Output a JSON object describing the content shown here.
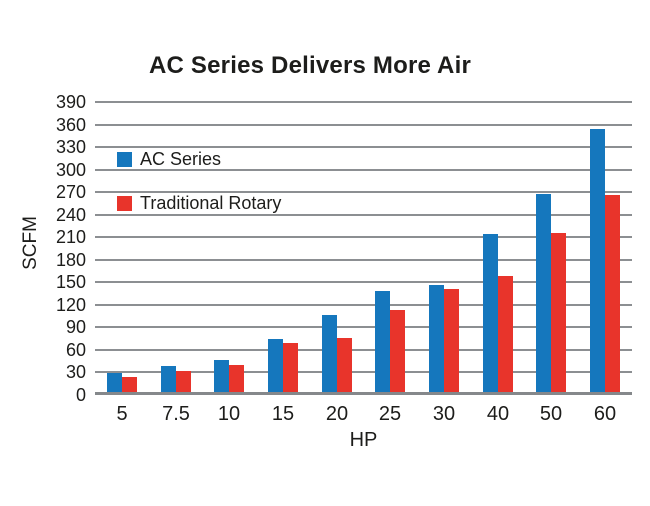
{
  "chart_data": {
    "type": "bar",
    "title": "AC Series Delivers More Air",
    "xlabel": "HP",
    "ylabel": "SCFM",
    "categories": [
      "5",
      "7.5",
      "10",
      "15",
      "20",
      "25",
      "30",
      "40",
      "50",
      "60"
    ],
    "series": [
      {
        "name": "AC Series",
        "color": "#1577BD",
        "values": [
          25,
          35,
          42,
          71,
          103,
          135,
          142,
          210,
          263,
          350
        ]
      },
      {
        "name": "Traditional Rotary",
        "color": "#E8342B",
        "values": [
          20,
          28,
          36,
          65,
          72,
          109,
          137,
          155,
          211,
          262
        ]
      }
    ],
    "ylim": [
      0,
      390
    ],
    "yticks": [
      0,
      30,
      60,
      90,
      120,
      150,
      180,
      210,
      240,
      270,
      300,
      330,
      360,
      390
    ],
    "grid": "horizontal",
    "gridline_color": "#8C8F92",
    "text_color": "#1D1D1B",
    "legend_position": "inside-top-left",
    "background": "#FFFFFF"
  }
}
